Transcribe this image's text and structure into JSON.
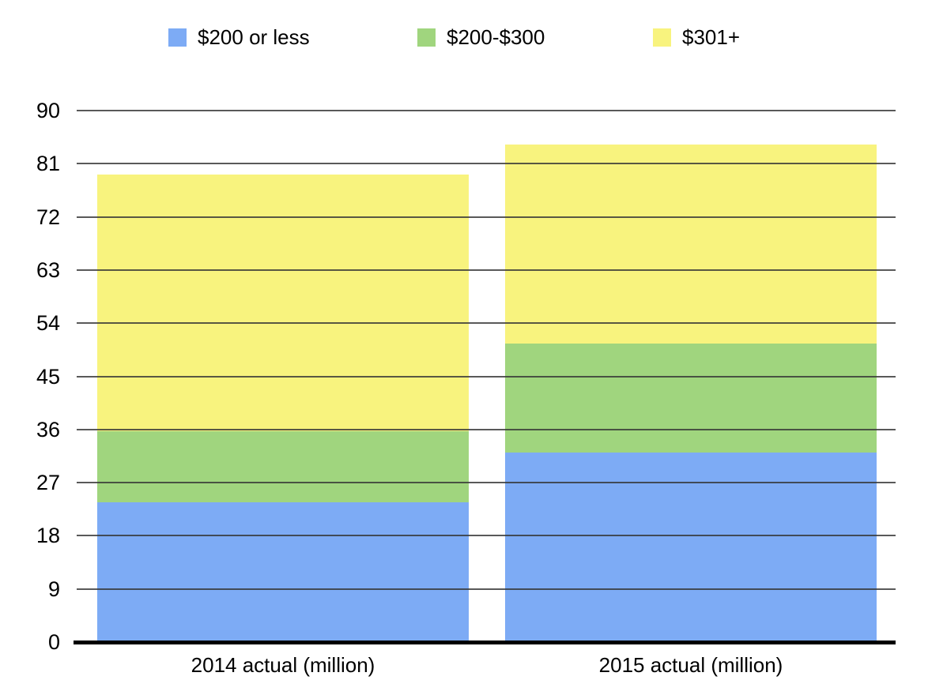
{
  "chart_data": {
    "type": "bar",
    "stacked": true,
    "title": "",
    "xlabel": "",
    "ylabel": "",
    "categories": [
      "2014 actual (million)",
      "2015 actual (million)"
    ],
    "series": [
      {
        "name": "$200 or less",
        "color": "#7DABF5",
        "values": [
          23.7,
          32.1
        ]
      },
      {
        "name": "$200-$300",
        "color": "#A0D57E",
        "values": [
          12.0,
          18.4
        ]
      },
      {
        "name": "$301+",
        "color": "#F8F37E",
        "values": [
          43.5,
          33.8
        ]
      }
    ],
    "totals": [
      79.2,
      84.3
    ],
    "ylim": [
      0,
      90
    ],
    "yticks": [
      0,
      9,
      18,
      27,
      36,
      45,
      54,
      63,
      72,
      81,
      90
    ],
    "grid": "horizontal",
    "legend_position": "top",
    "gridline_color": "#424242",
    "axis_line_color": "#000000",
    "text_color": "#000000"
  }
}
